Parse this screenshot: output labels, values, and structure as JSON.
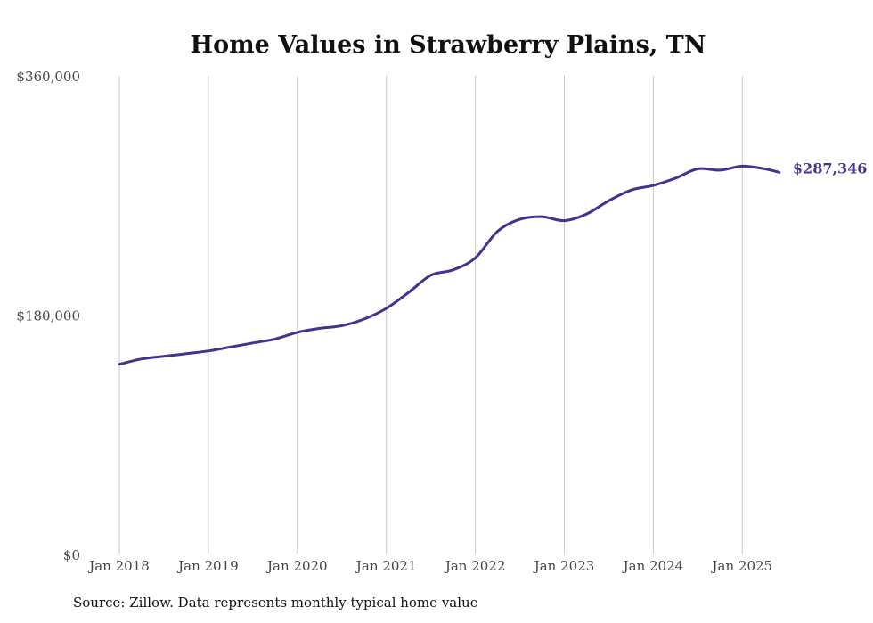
{
  "chart_data": {
    "type": "line",
    "title": "Home Values in Strawberry Plains, TN",
    "xlabel": "",
    "ylabel": "",
    "ylim": [
      0,
      360000
    ],
    "yticks": [
      {
        "value": 0,
        "label": "$0"
      },
      {
        "value": 180000,
        "label": "$180,000"
      },
      {
        "value": 360000,
        "label": "$360,000"
      }
    ],
    "xticks": [
      {
        "value": "2018-01",
        "label": "Jan 2018"
      },
      {
        "value": "2019-01",
        "label": "Jan 2019"
      },
      {
        "value": "2020-01",
        "label": "Jan 2020"
      },
      {
        "value": "2021-01",
        "label": "Jan 2021"
      },
      {
        "value": "2022-01",
        "label": "Jan 2022"
      },
      {
        "value": "2023-01",
        "label": "Jan 2023"
      },
      {
        "value": "2024-01",
        "label": "Jan 2024"
      },
      {
        "value": "2025-01",
        "label": "Jan 2025"
      }
    ],
    "grid": "vertical",
    "line_color": "#3d3590",
    "end_label": "$287,346",
    "series": [
      {
        "points": [
          {
            "x": "2018-01",
            "y": 143000
          },
          {
            "x": "2018-04",
            "y": 147000
          },
          {
            "x": "2018-07",
            "y": 149000
          },
          {
            "x": "2018-10",
            "y": 151000
          },
          {
            "x": "2019-01",
            "y": 153000
          },
          {
            "x": "2019-04",
            "y": 156000
          },
          {
            "x": "2019-07",
            "y": 159000
          },
          {
            "x": "2019-10",
            "y": 162000
          },
          {
            "x": "2020-01",
            "y": 167000
          },
          {
            "x": "2020-04",
            "y": 170000
          },
          {
            "x": "2020-07",
            "y": 172000
          },
          {
            "x": "2020-10",
            "y": 177000
          },
          {
            "x": "2021-01",
            "y": 185000
          },
          {
            "x": "2021-04",
            "y": 197000
          },
          {
            "x": "2021-07",
            "y": 210000
          },
          {
            "x": "2021-10",
            "y": 214000
          },
          {
            "x": "2022-01",
            "y": 223000
          },
          {
            "x": "2022-04",
            "y": 243000
          },
          {
            "x": "2022-07",
            "y": 252000
          },
          {
            "x": "2022-10",
            "y": 254000
          },
          {
            "x": "2023-01",
            "y": 251000
          },
          {
            "x": "2023-04",
            "y": 256000
          },
          {
            "x": "2023-07",
            "y": 266000
          },
          {
            "x": "2023-10",
            "y": 274000
          },
          {
            "x": "2024-01",
            "y": 277500
          },
          {
            "x": "2024-04",
            "y": 283000
          },
          {
            "x": "2024-07",
            "y": 290000
          },
          {
            "x": "2024-10",
            "y": 289000
          },
          {
            "x": "2025-01",
            "y": 292000
          },
          {
            "x": "2025-04",
            "y": 290000
          },
          {
            "x": "2025-06",
            "y": 287346
          }
        ]
      }
    ]
  },
  "source_text": "Source: Zillow. Data represents monthly typical home value"
}
